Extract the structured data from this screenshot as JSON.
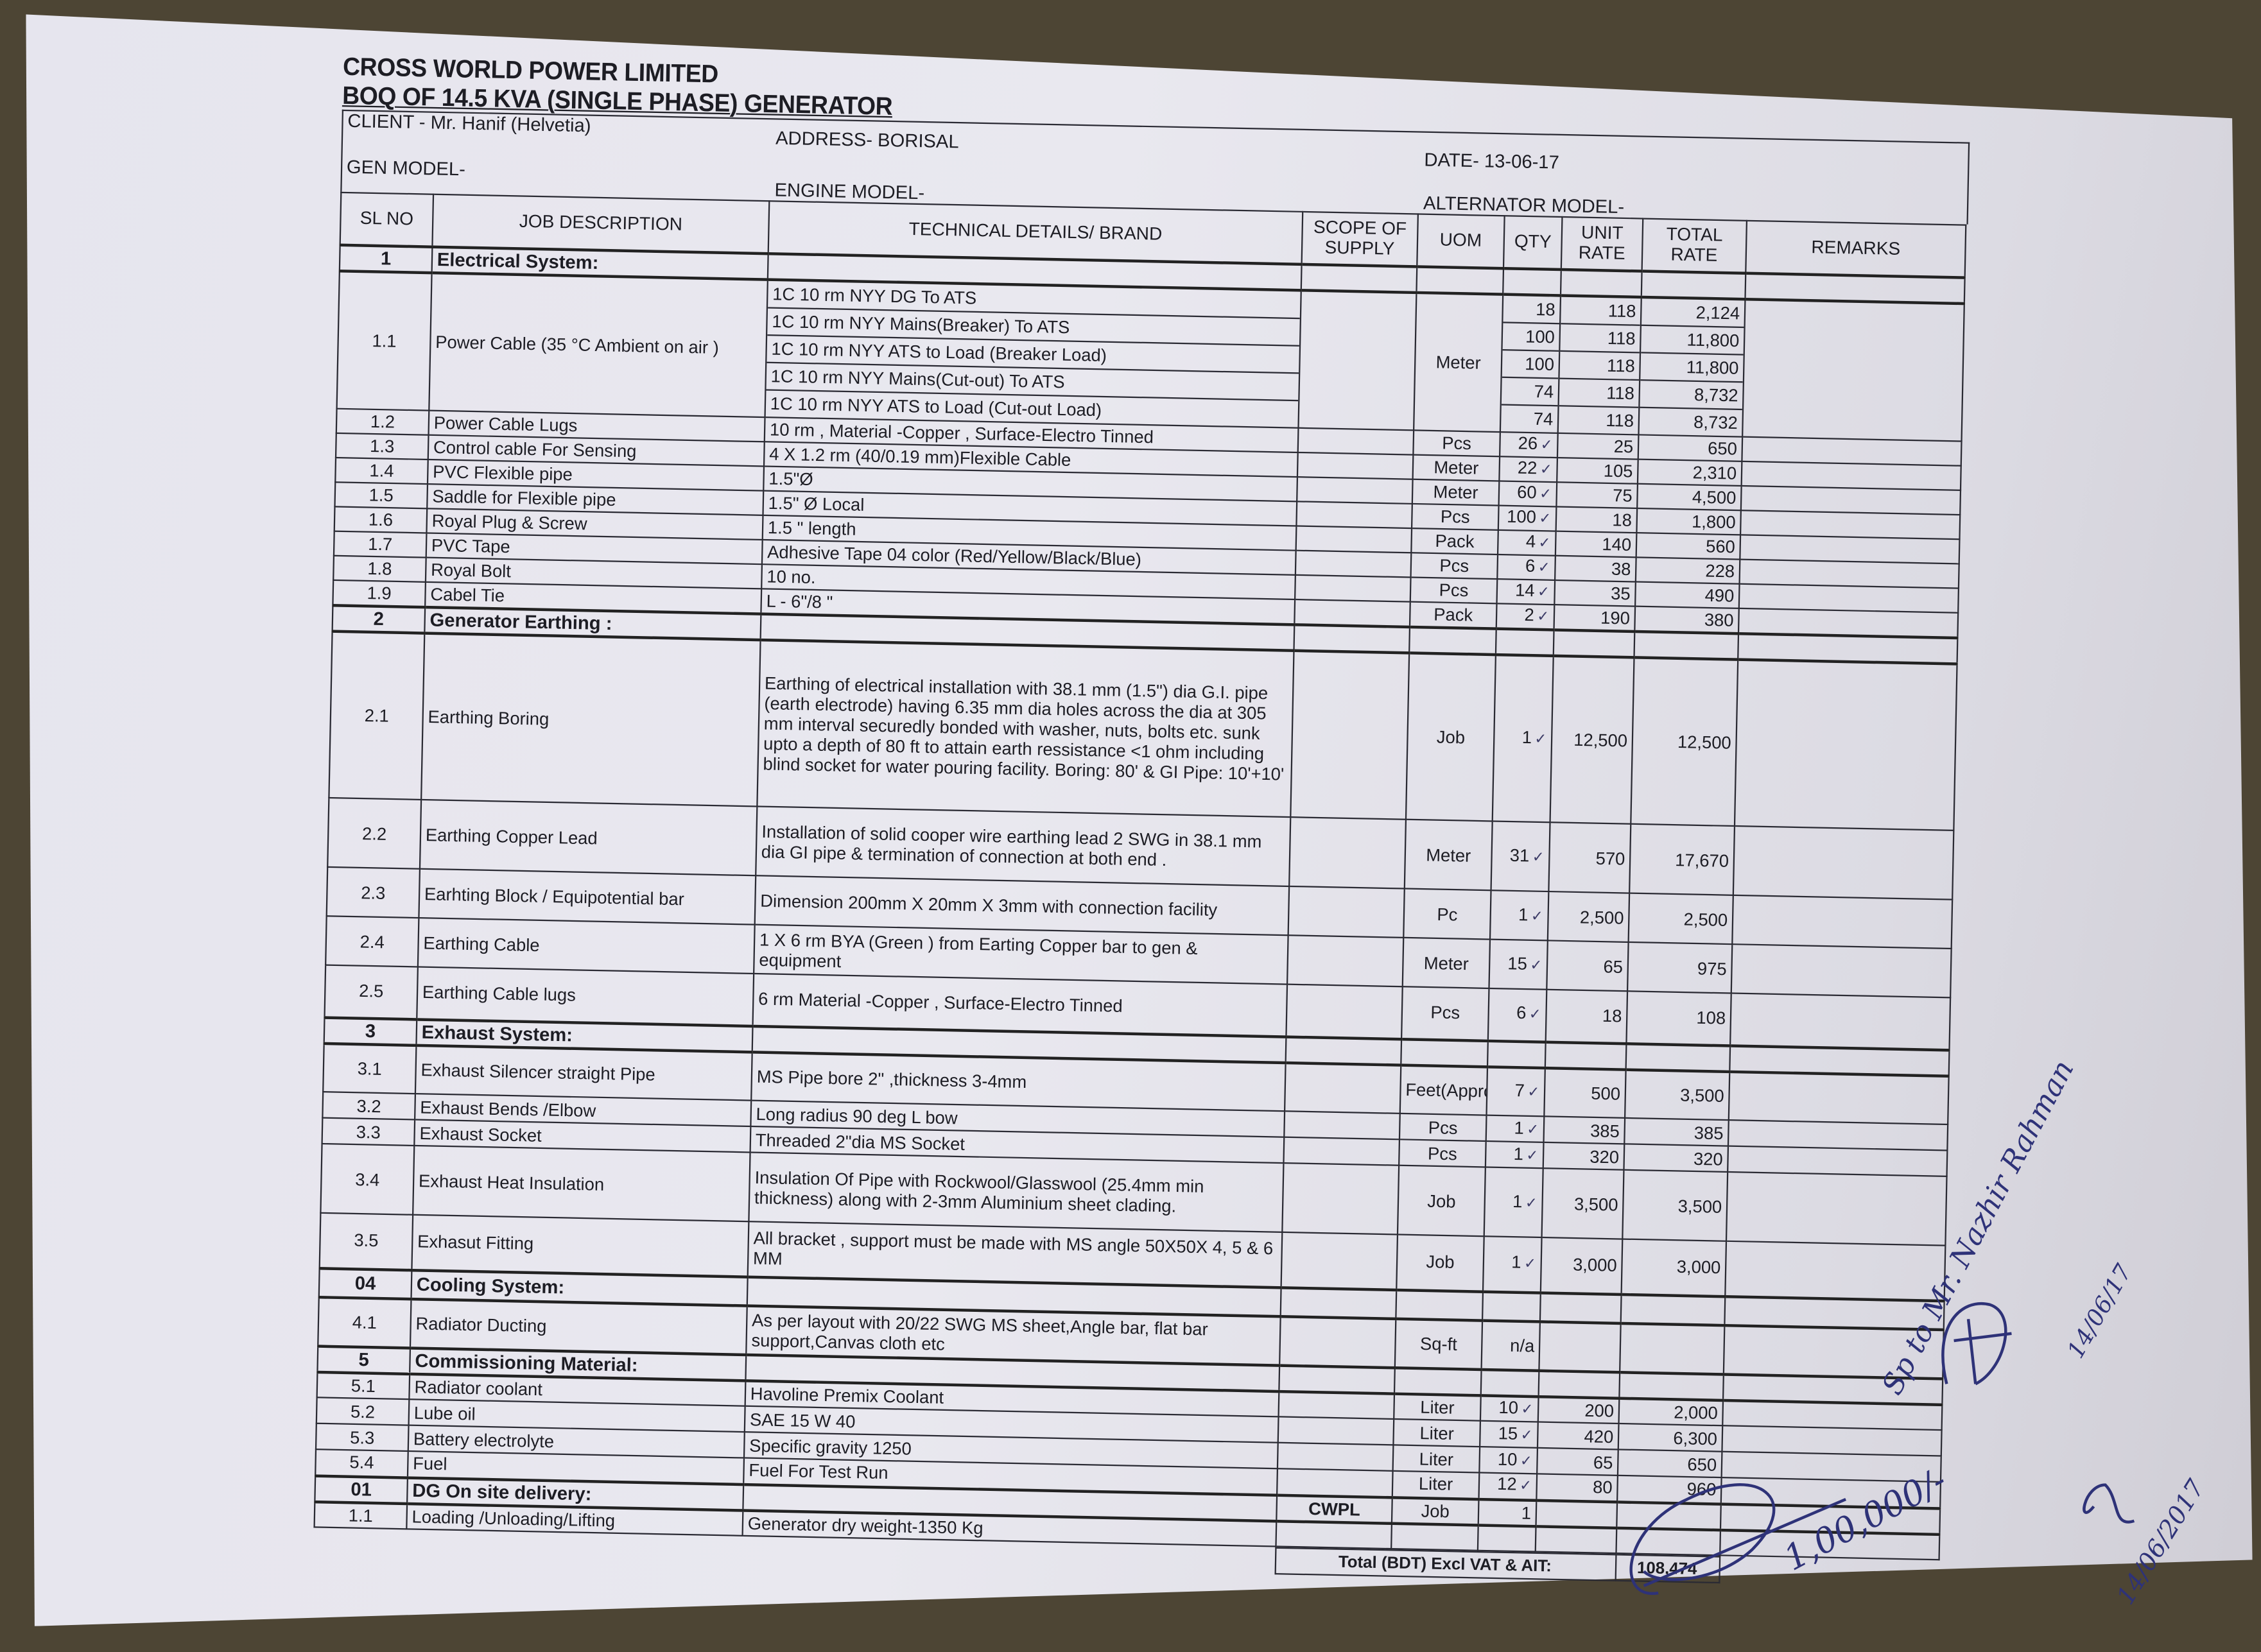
{
  "header": {
    "company": "CROSS WORLD POWER LIMITED",
    "doc_title": "BOQ OF 14.5 KVA (SINGLE PHASE) GENERATOR",
    "client": "CLIENT - Mr. Hanif (Helvetia)",
    "address": "ADDRESS- BORISAL",
    "date": "DATE- 13-06-17",
    "gen_model": "GEN MODEL-",
    "engine_model": "ENGINE MODEL-",
    "alternator_model": "ALTERNATOR MODEL-"
  },
  "columns": {
    "sl": "SL NO",
    "job": "JOB DESCRIPTION",
    "tech": "TECHNICAL DETAILS/ BRAND",
    "scope": "SCOPE OF SUPPLY",
    "uom": "UOM",
    "qty": "QTY",
    "unit": "UNIT RATE",
    "total": "TOTAL RATE",
    "remarks": "REMARKS"
  },
  "rows": [
    {
      "section": true,
      "sl": "1",
      "job": "Electrical System:"
    },
    {
      "sl": "1.1",
      "job": "Power Cable (35 °C Ambient on air )",
      "tech": [
        "1C 10 rm NYY DG To ATS",
        "1C 10 rm NYY Mains(Breaker) To ATS",
        "1C 10 rm NYY ATS to Load (Breaker Load)",
        "1C 10 rm NYY Mains(Cut-out) To ATS",
        "1C 10 rm NYY ATS to Load (Cut-out Load)"
      ],
      "uom": "Meter",
      "qty": [
        "18",
        "100",
        "100",
        "74",
        "74"
      ],
      "unit": [
        "118",
        "118",
        "118",
        "118",
        "118"
      ],
      "total": [
        "2,124",
        "11,800",
        "11,800",
        "8,732",
        "8,732"
      ]
    },
    {
      "sl": "1.2",
      "job": "Power Cable Lugs",
      "tech": "10  rm , Material -Copper , Surface-Electro Tinned",
      "uom": "Pcs",
      "qty": "26",
      "unit": "25",
      "total": "650"
    },
    {
      "sl": "1.3",
      "job": "Control cable For Sensing",
      "tech": "4 X 1.2 rm (40/0.19 mm)Flexible Cable",
      "uom": "Meter",
      "qty": "22",
      "unit": "105",
      "total": "2,310"
    },
    {
      "sl": "1.4",
      "job": "PVC Flexible pipe",
      "tech": "1.5\"Ø",
      "uom": "Meter",
      "qty": "60",
      "unit": "75",
      "total": "4,500"
    },
    {
      "sl": "1.5",
      "job": "Saddle for Flexible pipe",
      "tech": "1.5\" Ø Local",
      "uom": "Pcs",
      "qty": "100",
      "unit": "18",
      "total": "1,800"
    },
    {
      "sl": "1.6",
      "job": "Royal Plug & Screw",
      "tech": "1.5 \" length",
      "uom": "Pack",
      "qty": "4",
      "unit": "140",
      "total": "560"
    },
    {
      "sl": "1.7",
      "job": "PVC Tape",
      "tech": "Adhesive Tape 04 color (Red/Yellow/Black/Blue)",
      "uom": "Pcs",
      "qty": "6",
      "unit": "38",
      "total": "228"
    },
    {
      "sl": "1.8",
      "job": "Royal Bolt",
      "tech": "10 no.",
      "uom": "Pcs",
      "qty": "14",
      "unit": "35",
      "total": "490"
    },
    {
      "sl": "1.9",
      "job": "Cabel Tie",
      "tech": "L - 6\"/8 \"",
      "uom": "Pack",
      "qty": "2",
      "unit": "190",
      "total": "380"
    },
    {
      "section": true,
      "sl": "2",
      "job": "Generator Earthing :"
    },
    {
      "sl": "2.1",
      "job": "Earthing Boring",
      "tech": "Earthing of electrical installation with 38.1 mm (1.5\") dia G.I. pipe (earth electrode) having  6.35 mm dia holes across the dia at 305 mm interval securedly bonded with washer, nuts, bolts etc. sunk upto a depth of 80 ft to attain earth ressistance <1 ohm including blind socket for water pouring facility. Boring: 80' & GI Pipe: 10'+10'",
      "uom": "Job",
      "qty": "1",
      "unit": "12,500",
      "total": "12,500"
    },
    {
      "sl": "2.2",
      "job": "Earthing Copper Lead",
      "tech": "Installation of solid cooper wire earthing lead 2 SWG in 38.1 mm dia GI pipe & termination of connection at both end .",
      "uom": "Meter",
      "qty": "31",
      "unit": "570",
      "total": "17,670"
    },
    {
      "sl": "2.3",
      "job": "Earhting Block / Equipotential bar",
      "tech": "Dimension 200mm X 20mm X 3mm with connection facility",
      "uom": "Pc",
      "qty": "1",
      "unit": "2,500",
      "total": "2,500"
    },
    {
      "sl": "2.4",
      "job": "Earthing Cable",
      "tech": "1 X 6 rm BYA (Green ) from Earting Copper bar to gen & equipment",
      "uom": "Meter",
      "qty": "15",
      "unit": "65",
      "total": "975"
    },
    {
      "sl": "2.5",
      "job": "Earthing Cable lugs",
      "tech": "6 rm Material -Copper , Surface-Electro Tinned",
      "uom": "Pcs",
      "qty": "6",
      "unit": "18",
      "total": "108"
    },
    {
      "section": true,
      "sl": "3",
      "job": "Exhaust System:"
    },
    {
      "sl": "3.1",
      "job": "Exhaust Silencer straight Pipe",
      "tech": "MS Pipe  bore 2\" ,thickness 3-4mm",
      "uom": "Feet(Approx)",
      "qty": "7",
      "unit": "500",
      "total": "3,500"
    },
    {
      "sl": "3.2",
      "job": "Exhaust Bends /Elbow",
      "tech": "Long radius 90 deg L bow",
      "uom": "Pcs",
      "qty": "1",
      "unit": "385",
      "total": "385"
    },
    {
      "sl": "3.3",
      "job": "Exhaust Socket",
      "tech": "Threaded 2\"dia MS Socket",
      "uom": "Pcs",
      "qty": "1",
      "unit": "320",
      "total": "320"
    },
    {
      "sl": "3.4",
      "job": "Exhaust Heat Insulation",
      "tech": "Insulation Of Pipe with Rockwool/Glasswool (25.4mm min thickness) along with 2-3mm Aluminium sheet clading.",
      "uom": "Job",
      "qty": "1",
      "unit": "3,500",
      "total": "3,500"
    },
    {
      "sl": "3.5",
      "job": "Exhasut Fitting",
      "tech": "All bracket , support must be made with MS angle 50X50X 4, 5 & 6 MM",
      "uom": "Job",
      "qty": "1",
      "unit": "3,000",
      "total": "3,000"
    },
    {
      "section": true,
      "sl": "04",
      "job": "Cooling System:"
    },
    {
      "sl": "4.1",
      "job": "Radiator Ducting",
      "tech": "As per layout with 20/22 SWG MS sheet,Angle bar, flat bar support,Canvas cloth etc",
      "uom": "Sq-ft",
      "qty": "n/a",
      "unit": "",
      "total": ""
    },
    {
      "section": true,
      "sl": "5",
      "job": "Commissioning Material:"
    },
    {
      "sl": "5.1",
      "job": "Radiator coolant",
      "tech": "Havoline Premix Coolant",
      "uom": "Liter",
      "qty": "10",
      "unit": "200",
      "total": "2,000"
    },
    {
      "sl": "5.2",
      "job": "Lube oil",
      "tech": "SAE 15 W 40",
      "uom": "Liter",
      "qty": "15",
      "unit": "420",
      "total": "6,300"
    },
    {
      "sl": "5.3",
      "job": "Battery electrolyte",
      "tech": "Specific gravity 1250",
      "uom": "Liter",
      "qty": "10",
      "unit": "65",
      "total": "650"
    },
    {
      "sl": "5.4",
      "job": "Fuel",
      "tech": "Fuel For Test Run",
      "uom": "Liter",
      "qty": "12",
      "unit": "80",
      "total": "960"
    },
    {
      "section": true,
      "sl": "01",
      "job": "DG On site delivery:",
      "scope": "CWPL",
      "uom": "Job",
      "qty": "1"
    },
    {
      "sl": "1.1",
      "job": "Loading /Unloading/Lifting",
      "tech": "Generator dry weight-1350 Kg"
    }
  ],
  "total": {
    "label": "Total (BDT) Excl VAT & AIT:",
    "value": "108,474"
  },
  "handwritten": {
    "amount": "1,00,000/-",
    "note": "Sp to Mr. Nazhir Rahman",
    "date1": "14/06/17",
    "date2": "14/06/2017"
  },
  "colors": {
    "ink": "#1d1d24",
    "pen": "#2e3278",
    "paper": "#e7e6ee",
    "background": "#4d4534"
  }
}
